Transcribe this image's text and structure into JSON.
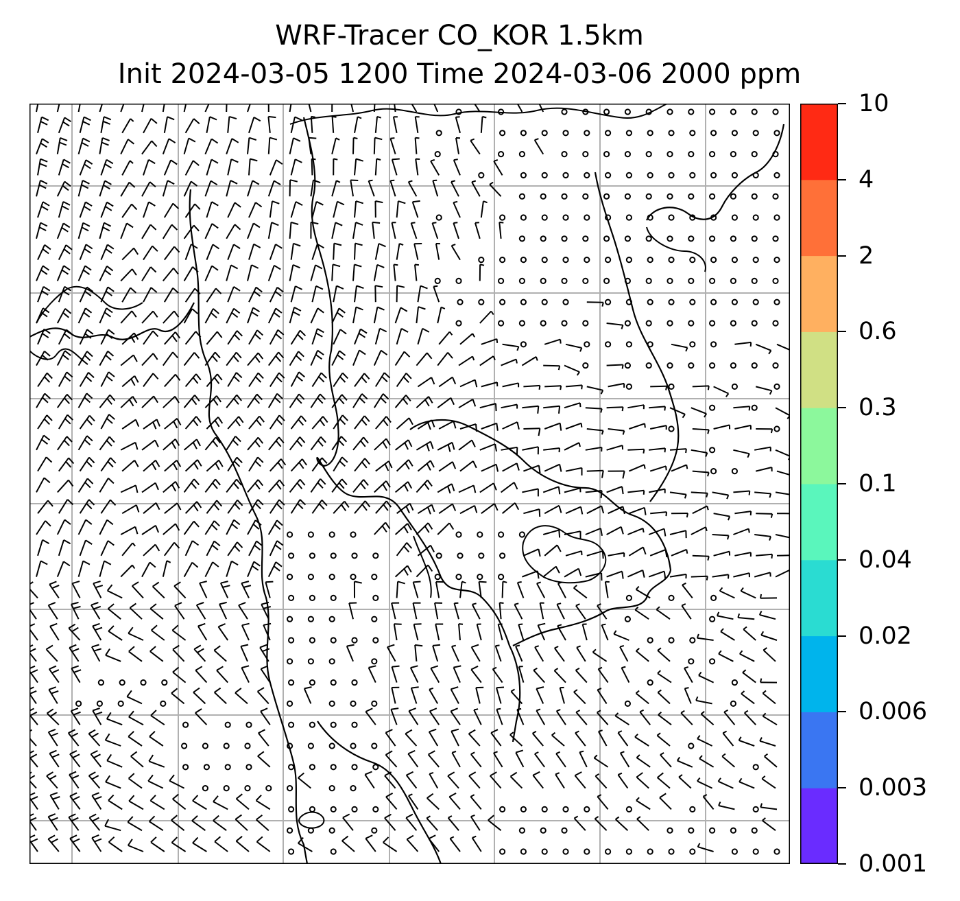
{
  "title": {
    "line1": "WRF-Tracer CO_KOR 1.5km",
    "line2": "Init 2024-03-05 1200 Time 2024-03-06 2000 ppm"
  },
  "map": {
    "gridlines": true,
    "grid_divisions_x": 7,
    "grid_divisions_y": 7,
    "wind_barbs": true,
    "coastline_color": "#000000",
    "grid_color": "#b0b0b0"
  },
  "colorbar": {
    "colormap": "rainbow",
    "tick_labels": [
      "0.001",
      "0.003",
      "0.006",
      "0.02",
      "0.04",
      "0.1",
      "0.3",
      "0.6",
      "2",
      "4",
      "10"
    ],
    "colors": [
      "#6a2cff",
      "#3a76f2",
      "#00b4ec",
      "#2adcd2",
      "#5af6bc",
      "#8cf89c",
      "#d0e084",
      "#ffb060",
      "#ff7038",
      "#ff2a14"
    ]
  }
}
